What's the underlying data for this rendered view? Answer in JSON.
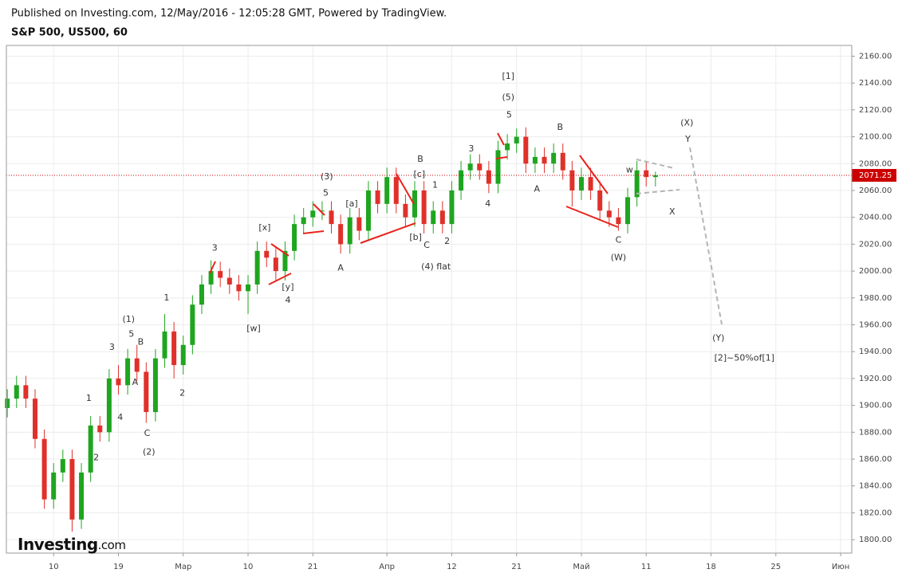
{
  "header": {
    "published": "Published on Investing.com, 12/May/2016 - 12:05:28 GMT, Powered by TradingView.",
    "symbol": "S&P 500, US500, 60"
  },
  "logo": {
    "brand": "Investing",
    "suffix": ".com"
  },
  "chart_data": {
    "type": "candlestick",
    "up_color": "#1fa51f",
    "down_color": "#e0302a",
    "x": [
      -5,
      -4,
      -3,
      -2,
      -1,
      0,
      1,
      2,
      3,
      4,
      5,
      6,
      7,
      8,
      9,
      10,
      11,
      12,
      13,
      14,
      15,
      16,
      17,
      18,
      19,
      20,
      21,
      22,
      23,
      24,
      25,
      26,
      27,
      28,
      29,
      30,
      31,
      32,
      33,
      34,
      35,
      36,
      37,
      38,
      39,
      40,
      41,
      42,
      43,
      44,
      45,
      46,
      47,
      48,
      49,
      50,
      51,
      52,
      53,
      54,
      55,
      56,
      57,
      58,
      59,
      60,
      61,
      62,
      63,
      64,
      65
    ],
    "open": [
      1898,
      1905,
      1915,
      1905,
      1875,
      1830,
      1850,
      1860,
      1815,
      1850,
      1885,
      1880,
      1920,
      1915,
      1935,
      1925,
      1895,
      1935,
      1955,
      1930,
      1945,
      1975,
      1990,
      2000,
      1995,
      1990,
      1985,
      1990,
      2015,
      2010,
      2000,
      2015,
      2035,
      2040,
      2045,
      2045,
      2035,
      2020,
      2040,
      2030,
      2060,
      2050,
      2070,
      2050,
      2040,
      2060,
      2035,
      2045,
      2035,
      2060,
      2075,
      2080,
      2075,
      2065,
      2090,
      2095,
      2100,
      2080,
      2085,
      2080,
      2088,
      2075,
      2060,
      2070,
      2060,
      2045,
      2040,
      2035,
      2055,
      2075,
      2070
    ],
    "high": [
      1912,
      1922,
      1922,
      1912,
      1882,
      1857,
      1867,
      1867,
      1857,
      1892,
      1892,
      1927,
      1930,
      1942,
      1945,
      1932,
      1942,
      1968,
      1962,
      1952,
      1982,
      1997,
      2008,
      2007,
      2002,
      1997,
      1997,
      2022,
      2022,
      2017,
      2022,
      2042,
      2047,
      2052,
      2052,
      2052,
      2042,
      2047,
      2047,
      2067,
      2067,
      2077,
      2077,
      2057,
      2067,
      2067,
      2052,
      2052,
      2067,
      2082,
      2087,
      2087,
      2082,
      2097,
      2102,
      2106,
      2107,
      2092,
      2092,
      2095,
      2095,
      2082,
      2077,
      2077,
      2067,
      2052,
      2047,
      2062,
      2082,
      2082,
      2074
    ],
    "low": [
      1891,
      1898,
      1898,
      1868,
      1823,
      1823,
      1843,
      1806,
      1808,
      1843,
      1873,
      1873,
      1908,
      1908,
      1918,
      1887,
      1888,
      1928,
      1920,
      1923,
      1938,
      1968,
      1983,
      1988,
      1983,
      1978,
      1968,
      1983,
      2003,
      1993,
      1993,
      2008,
      2028,
      2033,
      2038,
      2028,
      2013,
      2013,
      2023,
      2023,
      2043,
      2043,
      2043,
      2033,
      2033,
      2028,
      2028,
      2028,
      2028,
      2053,
      2068,
      2068,
      2058,
      2058,
      2083,
      2088,
      2073,
      2073,
      2073,
      2073,
      2068,
      2048,
      2053,
      2053,
      2038,
      2033,
      2030,
      2028,
      2048,
      2063,
      2063
    ],
    "close": [
      1905,
      1915,
      1905,
      1875,
      1830,
      1850,
      1860,
      1815,
      1850,
      1885,
      1880,
      1920,
      1915,
      1935,
      1925,
      1895,
      1935,
      1955,
      1930,
      1945,
      1975,
      1990,
      2000,
      1995,
      1990,
      1985,
      1990,
      2015,
      2010,
      2000,
      2015,
      2035,
      2040,
      2045,
      2045,
      2035,
      2020,
      2040,
      2030,
      2060,
      2050,
      2070,
      2050,
      2040,
      2060,
      2035,
      2045,
      2035,
      2060,
      2075,
      2080,
      2075,
      2065,
      2090,
      2095,
      2100,
      2080,
      2085,
      2080,
      2088,
      2075,
      2060,
      2070,
      2060,
      2045,
      2040,
      2035,
      2055,
      2075,
      2070,
      2071.25
    ],
    "last_price": 2071.25,
    "last_color": "#cc0000",
    "xlim": [
      -5.1,
      86.2
    ],
    "ylim": [
      1790,
      2168
    ],
    "xticks": [
      {
        "value": 0,
        "label": "10"
      },
      {
        "value": 7,
        "label": "19"
      },
      {
        "value": 14,
        "label": "Мар"
      },
      {
        "value": 21,
        "label": "10"
      },
      {
        "value": 28,
        "label": "21"
      },
      {
        "value": 36,
        "label": "Апр"
      },
      {
        "value": 43,
        "label": "12"
      },
      {
        "value": 50,
        "label": "21"
      },
      {
        "value": 57,
        "label": "Май"
      },
      {
        "value": 64,
        "label": "11"
      },
      {
        "value": 71,
        "label": "18"
      },
      {
        "value": 78,
        "label": "25"
      },
      {
        "value": 85,
        "label": "Июн"
      }
    ],
    "yticks": [
      {
        "value": 1800,
        "label": "1800.00"
      },
      {
        "value": 1820,
        "label": "1820.00"
      },
      {
        "value": 1840,
        "label": "1840.00"
      },
      {
        "value": 1860,
        "label": "1860.00"
      },
      {
        "value": 1880,
        "label": "1880.00"
      },
      {
        "value": 1900,
        "label": "1900.00"
      },
      {
        "value": 1920,
        "label": "1920.00"
      },
      {
        "value": 1940,
        "label": "1940.00"
      },
      {
        "value": 1960,
        "label": "1960.00"
      },
      {
        "value": 1980,
        "label": "1980.00"
      },
      {
        "value": 2000,
        "label": "2000.00"
      },
      {
        "value": 2020,
        "label": "2020.00"
      },
      {
        "value": 2040,
        "label": "2040.00"
      },
      {
        "value": 2060,
        "label": "2060.00"
      },
      {
        "value": 2080,
        "label": "2080.00"
      },
      {
        "value": 2100,
        "label": "2100.00"
      },
      {
        "value": 2120,
        "label": "2120.00"
      },
      {
        "value": 2140,
        "label": "2140.00"
      },
      {
        "value": 2160,
        "label": "2160.00"
      }
    ],
    "grid": true,
    "annotations": [
      {
        "text": "1",
        "x": 3.8,
        "y": 1905
      },
      {
        "text": "2",
        "x": 4.6,
        "y": 1861
      },
      {
        "text": "3",
        "x": 6.3,
        "y": 1943
      },
      {
        "text": "4",
        "x": 7.2,
        "y": 1891
      },
      {
        "text": "5",
        "x": 8.4,
        "y": 1953
      },
      {
        "text": "(1)",
        "x": 8.1,
        "y": 1964
      },
      {
        "text": "B",
        "x": 9.4,
        "y": 1947
      },
      {
        "text": "A",
        "x": 8.8,
        "y": 1917
      },
      {
        "text": "C",
        "x": 10.1,
        "y": 1879
      },
      {
        "text": "(2)",
        "x": 10.3,
        "y": 1865
      },
      {
        "text": "1",
        "x": 12.2,
        "y": 1980
      },
      {
        "text": "2",
        "x": 13.9,
        "y": 1909
      },
      {
        "text": "3",
        "x": 17.4,
        "y": 2017
      },
      {
        "text": "[x]",
        "x": 22.8,
        "y": 2032
      },
      {
        "text": "[w]",
        "x": 21.6,
        "y": 1957
      },
      {
        "text": "[y]",
        "x": 25.3,
        "y": 1988
      },
      {
        "text": "4",
        "x": 25.3,
        "y": 1978
      },
      {
        "text": "(3)",
        "x": 29.5,
        "y": 2070
      },
      {
        "text": "5",
        "x": 29.4,
        "y": 2058
      },
      {
        "text": "[a]",
        "x": 32.2,
        "y": 2050
      },
      {
        "text": "A",
        "x": 31.0,
        "y": 2002
      },
      {
        "text": "B",
        "x": 39.6,
        "y": 2083
      },
      {
        "text": "[c]",
        "x": 39.5,
        "y": 2072
      },
      {
        "text": "1",
        "x": 41.2,
        "y": 2064
      },
      {
        "text": "[b]",
        "x": 39.1,
        "y": 2025
      },
      {
        "text": "C",
        "x": 40.3,
        "y": 2019
      },
      {
        "text": "2",
        "x": 42.5,
        "y": 2022
      },
      {
        "text": "(4) flat",
        "x": 41.3,
        "y": 2003
      },
      {
        "text": "3",
        "x": 45.1,
        "y": 2091
      },
      {
        "text": "4",
        "x": 46.9,
        "y": 2050
      },
      {
        "text": "[1]",
        "x": 49.1,
        "y": 2145
      },
      {
        "text": "(5)",
        "x": 49.1,
        "y": 2129
      },
      {
        "text": "5",
        "x": 49.2,
        "y": 2116
      },
      {
        "text": "B",
        "x": 54.7,
        "y": 2107
      },
      {
        "text": "A",
        "x": 52.2,
        "y": 2061
      },
      {
        "text": "C",
        "x": 61.0,
        "y": 2023
      },
      {
        "text": "(W)",
        "x": 61.0,
        "y": 2010
      },
      {
        "text": "w",
        "x": 62.2,
        "y": 2075
      },
      {
        "text": "(X)",
        "x": 68.4,
        "y": 2110
      },
      {
        "text": "Y",
        "x": 68.5,
        "y": 2098
      },
      {
        "text": "X",
        "x": 66.8,
        "y": 2044
      },
      {
        "text": "(Y)",
        "x": 71.8,
        "y": 1950
      },
      {
        "text": "[2]~50%of[1]",
        "x": 74.6,
        "y": 1935
      }
    ]
  }
}
